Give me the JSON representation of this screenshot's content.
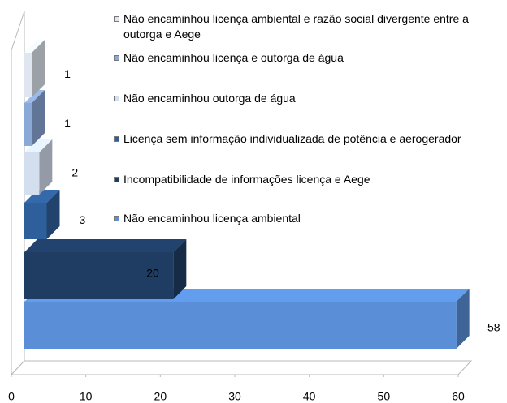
{
  "chart_data": {
    "type": "bar",
    "orientation": "horizontal",
    "categories": [
      "Não encaminhou licença ambiental",
      "Incompatibilidade de informações licença e Aege",
      "Licença sem informação individualizada de potência e aerogerador",
      "Não encaminhou outorga de água",
      "Não encaminhou licença e outorga de água",
      "Não encaminhou licença ambiental e razão social divergente entre a outorga e Aege"
    ],
    "values": [
      58,
      20,
      3,
      2,
      1,
      1
    ],
    "colors": [
      "#5a8fd8",
      "#1f3d63",
      "#2f5f9b",
      "#d3deee",
      "#8ba9d6",
      "#dfe6ef"
    ],
    "xlim": [
      0,
      60
    ],
    "xticks": [
      0,
      10,
      20,
      30,
      40,
      50,
      60
    ],
    "legend": "right"
  }
}
